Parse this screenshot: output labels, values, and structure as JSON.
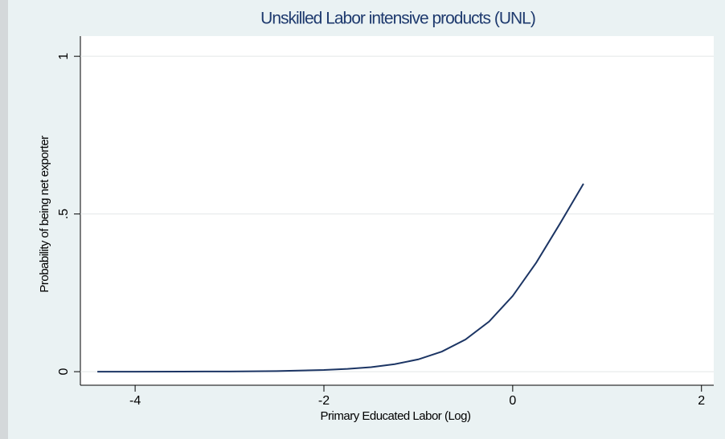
{
  "chart_data": {
    "type": "line",
    "title": "Unskilled Labor intensive products (UNL)",
    "x_label": "Primary Educated Labor (Log)",
    "y_label": "Probability of being net exporter",
    "x": [
      -4.4,
      -4,
      -3.5,
      -3,
      -2.5,
      -2,
      -1.75,
      -1.5,
      -1.25,
      -1,
      -0.75,
      -0.5,
      -0.25,
      0,
      0.25,
      0.5,
      0.75
    ],
    "series": [
      {
        "color": "#1c3564",
        "values": [
          4e-05,
          9e-05,
          0.00024,
          0.00068,
          0.0019,
          0.0052,
          0.0087,
          0.0144,
          0.0238,
          0.039,
          0.0637,
          0.102,
          0.159,
          0.24,
          0.346,
          0.469,
          0.596
        ]
      }
    ],
    "xlim": [
      -4.58,
      2.13
    ],
    "xticks": [
      -4,
      -2,
      0,
      2
    ],
    "ylim": [
      -0.043,
      1.064
    ],
    "yticks": [
      0,
      {
        "value": 0.5,
        "label": ".5"
      },
      1
    ],
    "grid": true
  }
}
